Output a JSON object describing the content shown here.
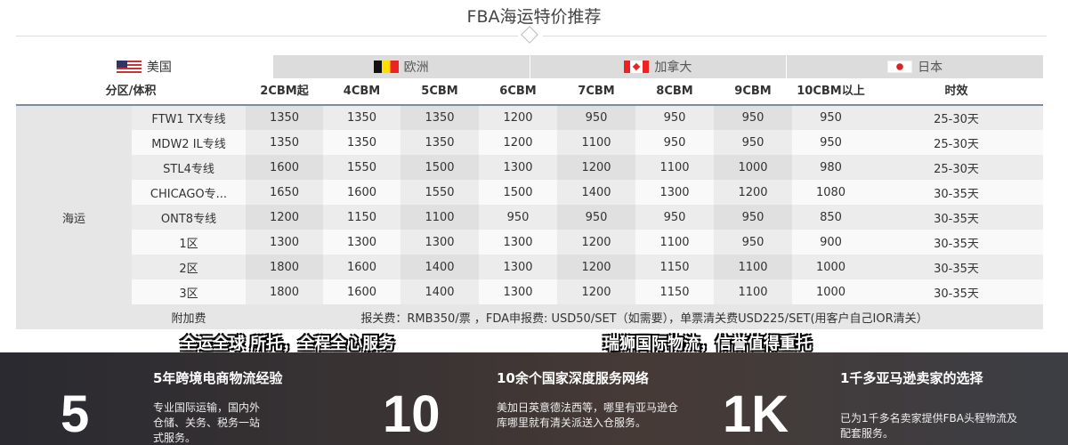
{
  "title": "FBA海运特价推荐",
  "tabs": [
    {
      "label": "美国",
      "flag": "us-flag-icon"
    },
    {
      "label": "欧洲",
      "flag": "belgium-flag-icon"
    },
    {
      "label": "加拿大",
      "flag": "canada-flag-icon"
    },
    {
      "label": "日本",
      "flag": "japan-flag-icon"
    }
  ],
  "table": {
    "headers": [
      "分区/体积",
      "2CBM起",
      "4CBM",
      "5CBM",
      "6CBM",
      "7CBM",
      "8CBM",
      "9CBM",
      "10CBM以上",
      "时效"
    ],
    "category": "海运",
    "rows": [
      [
        "FTW1 TX专线",
        "1350",
        "1350",
        "1350",
        "1200",
        "950",
        "950",
        "950",
        "950",
        "25-30天"
      ],
      [
        "MDW2 IL专线",
        "1350",
        "1350",
        "1350",
        "1200",
        "1100",
        "950",
        "950",
        "950",
        "25-30天"
      ],
      [
        "STL4专线",
        "1600",
        "1550",
        "1500",
        "1300",
        "1200",
        "1100",
        "1000",
        "980",
        "25-30天"
      ],
      [
        "CHICAGO专...",
        "1650",
        "1600",
        "1550",
        "1500",
        "1400",
        "1300",
        "1200",
        "1080",
        "30-35天"
      ],
      [
        "ONT8专线",
        "1200",
        "1150",
        "1100",
        "950",
        "950",
        "950",
        "950",
        "850",
        "30-35天"
      ],
      [
        "1区",
        "1300",
        "1300",
        "1300",
        "1300",
        "1200",
        "1100",
        "950",
        "900",
        "30-35天"
      ],
      [
        "2区",
        "1800",
        "1600",
        "1400",
        "1300",
        "1200",
        "1150",
        "1100",
        "1000",
        "30-35天"
      ],
      [
        "3区",
        "1800",
        "1600",
        "1400",
        "1300",
        "1200",
        "1150",
        "1100",
        "1000",
        "30-35天"
      ]
    ],
    "surcharge_label": "附加费",
    "surcharge_text": "报关费：RMB350/票 ，FDA申报费: USD50/SET（如需要），单票清关费USD225/SET(用客户自己IOR清关）"
  },
  "slogans": [
    "全运全球 所托，全程全心服务",
    "瑞狮国际物流，信誉值得重托"
  ],
  "stats": [
    {
      "number": "5",
      "heading": "5年跨境电商物流经验",
      "desc": "专业国际运输，国内外仓储、关务、税务一站式服务。"
    },
    {
      "number": "10",
      "heading": "10余个国家深度服务网络",
      "desc": "美加日英意德法西等，哪里有亚马逊仓库哪里就有清关派送入仓服务。"
    },
    {
      "number": "1K",
      "heading": "1千多亚马逊卖家的选择",
      "desc": "已为1千多名卖家提供FBA头程物流及配套服务。"
    }
  ]
}
